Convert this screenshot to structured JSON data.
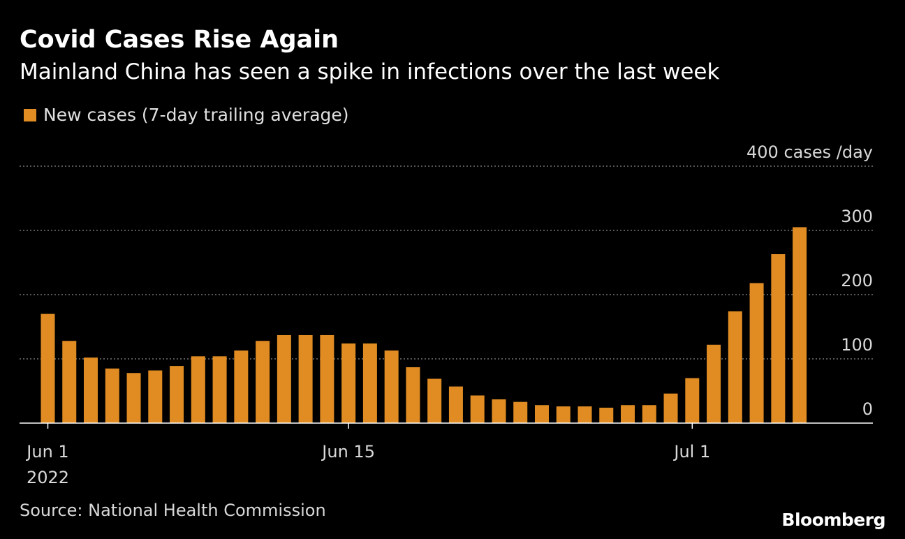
{
  "title": "Covid Cases Rise Again",
  "subtitle": "Mainland China has seen a spike in infections over the last week",
  "legend": {
    "label": "New cases (7-day trailing average)",
    "color": "#e08c23"
  },
  "source": "Source: National Health Commission",
  "brand": "Bloomberg",
  "chart_data": {
    "type": "bar",
    "x_start": "2022-06-01",
    "x_end": "2022-07-06",
    "dates": [
      "2022-06-01",
      "2022-06-02",
      "2022-06-03",
      "2022-06-04",
      "2022-06-05",
      "2022-06-06",
      "2022-06-07",
      "2022-06-08",
      "2022-06-09",
      "2022-06-10",
      "2022-06-11",
      "2022-06-12",
      "2022-06-13",
      "2022-06-14",
      "2022-06-15",
      "2022-06-16",
      "2022-06-17",
      "2022-06-18",
      "2022-06-19",
      "2022-06-20",
      "2022-06-21",
      "2022-06-22",
      "2022-06-23",
      "2022-06-24",
      "2022-06-25",
      "2022-06-26",
      "2022-06-27",
      "2022-06-28",
      "2022-06-29",
      "2022-06-30",
      "2022-07-01",
      "2022-07-02",
      "2022-07-03",
      "2022-07-04",
      "2022-07-05",
      "2022-07-06"
    ],
    "values": [
      170,
      128,
      102,
      85,
      78,
      82,
      89,
      104,
      104,
      113,
      128,
      137,
      137,
      137,
      124,
      124,
      113,
      87,
      69,
      57,
      43,
      37,
      33,
      28,
      26,
      26,
      24,
      28,
      28,
      46,
      70,
      122,
      174,
      218,
      263,
      305
    ],
    "x_ticks": [
      {
        "date": "2022-06-01",
        "label": "Jun 1",
        "sublabel": "2022"
      },
      {
        "date": "2022-06-15",
        "label": "Jun 15",
        "sublabel": ""
      },
      {
        "date": "2022-07-01",
        "label": "Jul 1",
        "sublabel": ""
      }
    ],
    "y_ticks": [
      {
        "value": 0,
        "label": "0"
      },
      {
        "value": 100,
        "label": "100"
      },
      {
        "value": 200,
        "label": "200"
      },
      {
        "value": 300,
        "label": "300"
      },
      {
        "value": 400,
        "label": "400 cases /day"
      }
    ],
    "ylim": [
      0,
      400
    ],
    "grid": true,
    "bar_color": "#e08c23",
    "legend_position": "top-left"
  }
}
